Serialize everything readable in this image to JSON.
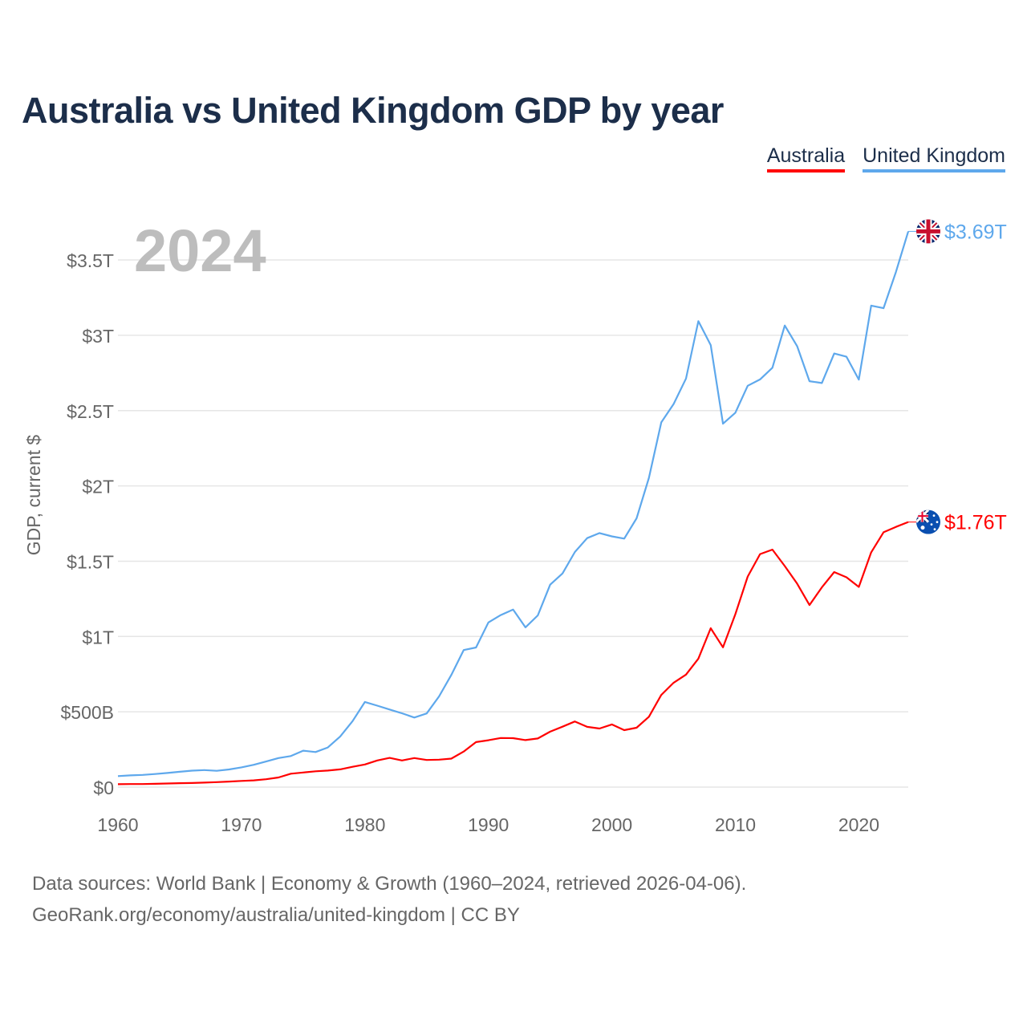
{
  "title": "Australia vs United Kingdom GDP by year",
  "legend": [
    {
      "label": "Australia",
      "color": "#ff0000"
    },
    {
      "label": "United Kingdom",
      "color": "#5ea8ec"
    }
  ],
  "year_badge": "2024",
  "footer": {
    "line1": "Data sources: World Bank | Economy & Growth (1960–2024, retrieved 2026-04-06).",
    "line2": "GeoRank.org/economy/australia/united-kingdom | CC BY"
  },
  "chart_data": {
    "type": "line",
    "title": "Australia vs United Kingdom GDP by year",
    "xlabel": "",
    "ylabel": "GDP, current $",
    "xlim": [
      1960,
      2024
    ],
    "ylim": [
      0,
      3.7
    ],
    "y_unit": "trillion USD",
    "grid": true,
    "legend_position": "top-right",
    "x_ticks": [
      1960,
      1970,
      1980,
      1990,
      2000,
      2010,
      2020
    ],
    "x_tick_labels": [
      "1960",
      "1970",
      "1980",
      "1990",
      "2000",
      "2010",
      "2020"
    ],
    "y_ticks": [
      0,
      0.5,
      1,
      1.5,
      2,
      2.5,
      3,
      3.5
    ],
    "y_tick_labels": [
      "$0",
      "$500B",
      "$1T",
      "$1.5T",
      "$2T",
      "$2.5T",
      "$3T",
      "$3.5T"
    ],
    "x": [
      1960,
      1961,
      1962,
      1963,
      1964,
      1965,
      1966,
      1967,
      1968,
      1969,
      1970,
      1971,
      1972,
      1973,
      1974,
      1975,
      1976,
      1977,
      1978,
      1979,
      1980,
      1981,
      1982,
      1983,
      1984,
      1985,
      1986,
      1987,
      1988,
      1989,
      1990,
      1991,
      1992,
      1993,
      1994,
      1995,
      1996,
      1997,
      1998,
      1999,
      2000,
      2001,
      2002,
      2003,
      2004,
      2005,
      2006,
      2007,
      2008,
      2009,
      2010,
      2011,
      2012,
      2013,
      2014,
      2015,
      2016,
      2017,
      2018,
      2019,
      2020,
      2021,
      2022,
      2023,
      2024
    ],
    "series": [
      {
        "name": "Australia",
        "color": "#ff0000",
        "end_label": "$1.76T",
        "flag": "australia-flag",
        "values": [
          0.019,
          0.02,
          0.02,
          0.022,
          0.024,
          0.026,
          0.027,
          0.03,
          0.033,
          0.037,
          0.041,
          0.045,
          0.052,
          0.064,
          0.089,
          0.097,
          0.105,
          0.11,
          0.118,
          0.135,
          0.15,
          0.177,
          0.194,
          0.177,
          0.193,
          0.18,
          0.182,
          0.189,
          0.236,
          0.299,
          0.311,
          0.326,
          0.325,
          0.312,
          0.323,
          0.368,
          0.401,
          0.436,
          0.4,
          0.389,
          0.416,
          0.378,
          0.394,
          0.467,
          0.612,
          0.693,
          0.747,
          0.853,
          1.055,
          0.928,
          1.148,
          1.398,
          1.547,
          1.577,
          1.468,
          1.351,
          1.209,
          1.326,
          1.428,
          1.393,
          1.329,
          1.559,
          1.692,
          1.728,
          1.76
        ]
      },
      {
        "name": "United Kingdom",
        "color": "#5ea8ec",
        "end_label": "$3.69T",
        "flag": "united-kingdom-flag",
        "values": [
          0.073,
          0.078,
          0.081,
          0.087,
          0.094,
          0.102,
          0.109,
          0.113,
          0.108,
          0.117,
          0.131,
          0.148,
          0.17,
          0.193,
          0.206,
          0.242,
          0.233,
          0.263,
          0.336,
          0.438,
          0.565,
          0.541,
          0.515,
          0.49,
          0.462,
          0.489,
          0.602,
          0.745,
          0.91,
          0.927,
          1.093,
          1.142,
          1.179,
          1.061,
          1.14,
          1.344,
          1.419,
          1.561,
          1.653,
          1.687,
          1.665,
          1.65,
          1.785,
          2.054,
          2.422,
          2.544,
          2.713,
          3.094,
          2.935,
          2.413,
          2.486,
          2.665,
          2.707,
          2.785,
          3.065,
          2.928,
          2.695,
          2.683,
          2.879,
          2.858,
          2.706,
          3.197,
          3.18,
          3.42,
          3.69
        ]
      }
    ]
  }
}
